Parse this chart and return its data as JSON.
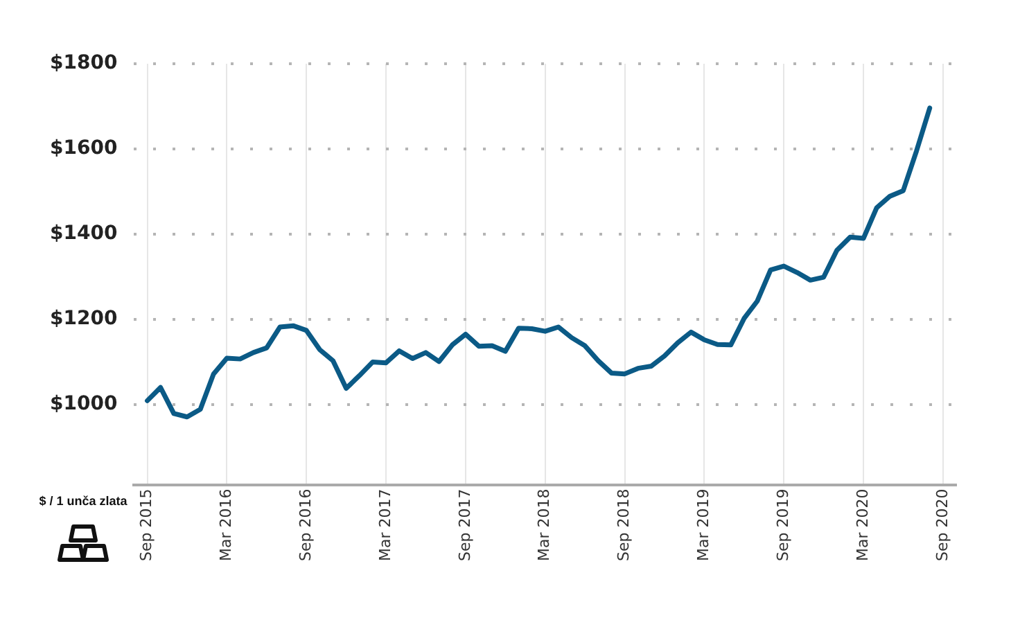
{
  "chart_data": {
    "type": "line",
    "x": [
      "2015-09",
      "2015-10",
      "2015-11",
      "2015-12",
      "2016-01",
      "2016-02",
      "2016-03",
      "2016-04",
      "2016-05",
      "2016-06",
      "2016-07",
      "2016-08",
      "2016-09",
      "2016-10",
      "2016-11",
      "2016-12",
      "2017-01",
      "2017-02",
      "2017-03",
      "2017-04",
      "2017-05",
      "2017-06",
      "2017-07",
      "2017-08",
      "2017-09",
      "2017-10",
      "2017-11",
      "2017-12",
      "2018-01",
      "2018-02",
      "2018-03",
      "2018-04",
      "2018-05",
      "2018-06",
      "2018-07",
      "2018-08",
      "2018-09",
      "2018-10",
      "2018-11",
      "2018-12",
      "2019-01",
      "2019-02",
      "2019-03",
      "2019-04",
      "2019-05",
      "2019-06",
      "2019-07",
      "2019-08",
      "2019-09",
      "2019-10",
      "2019-11",
      "2019-12",
      "2020-01",
      "2020-02",
      "2020-03",
      "2020-04",
      "2020-05",
      "2020-06",
      "2020-07",
      "2020-08"
    ],
    "series": [
      {
        "color": "#0b5a86",
        "values": [
          1009,
          1040,
          979,
          971,
          989,
          1072,
          1109,
          1107,
          1122,
          1133,
          1182,
          1185,
          1174,
          1129,
          1103,
          1038,
          1068,
          1100,
          1098,
          1126,
          1108,
          1122,
          1101,
          1140,
          1165,
          1137,
          1138,
          1125,
          1179,
          1178,
          1172,
          1182,
          1157,
          1138,
          1103,
          1074,
          1072,
          1085,
          1090,
          1114,
          1145,
          1170,
          1152,
          1141,
          1140,
          1202,
          1243,
          1316,
          1325,
          1310,
          1292,
          1299,
          1362,
          1393,
          1390,
          1462,
          1489,
          1502,
          1595,
          1696
        ]
      }
    ],
    "xlim": [
      "2015-08",
      "2020-10"
    ],
    "xticks": [
      {
        "value": "2015-09",
        "label": "Sep 2015"
      },
      {
        "value": "2016-03",
        "label": "Mar 2016"
      },
      {
        "value": "2016-09",
        "label": "Sep 2016"
      },
      {
        "value": "2017-03",
        "label": "Mar 2017"
      },
      {
        "value": "2017-09",
        "label": "Sep 2017"
      },
      {
        "value": "2018-03",
        "label": "Mar 2018"
      },
      {
        "value": "2018-09",
        "label": "Sep 2018"
      },
      {
        "value": "2019-03",
        "label": "Mar 2019"
      },
      {
        "value": "2019-09",
        "label": "Sep 2019"
      },
      {
        "value": "2020-03",
        "label": "Mar 2020"
      },
      {
        "value": "2020-09",
        "label": "Sep 2020"
      }
    ],
    "ylim": [
      812,
      1800
    ],
    "yticks": [
      {
        "value": 1000,
        "label": "$1000"
      },
      {
        "value": 1200,
        "label": "$1200"
      },
      {
        "value": 1400,
        "label": "$1400"
      },
      {
        "value": 1600,
        "label": "$1600"
      },
      {
        "value": 1800,
        "label": "$1800"
      }
    ],
    "annotations": [
      "$ / 1 unča zlata"
    ],
    "grid": true,
    "legend": false,
    "marker": "none",
    "line_style": "solid"
  }
}
